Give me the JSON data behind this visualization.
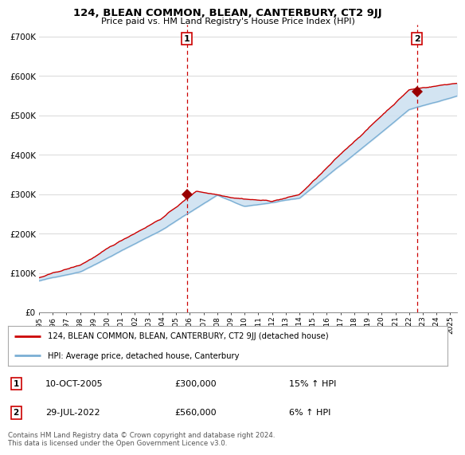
{
  "title": "124, BLEAN COMMON, BLEAN, CANTERBURY, CT2 9JJ",
  "subtitle": "Price paid vs. HM Land Registry's House Price Index (HPI)",
  "ylabel_ticks": [
    "£0",
    "£100K",
    "£200K",
    "£300K",
    "£400K",
    "£500K",
    "£600K",
    "£700K"
  ],
  "ytick_values": [
    0,
    100000,
    200000,
    300000,
    400000,
    500000,
    600000,
    700000
  ],
  "ylim": [
    0,
    730000
  ],
  "xlim_start": 1995.0,
  "xlim_end": 2025.5,
  "hpi_color": "#7bafd4",
  "price_color": "#cc0000",
  "fill_color": "#cce0f0",
  "dashed_line_color": "#cc0000",
  "grid_color": "#d8d8d8",
  "bg_color": "#ffffff",
  "sale1_x": 2005.78,
  "sale1_y": 300000,
  "sale2_x": 2022.58,
  "sale2_y": 560000,
  "marker_color": "#990000",
  "legend_property_label": "124, BLEAN COMMON, BLEAN, CANTERBURY, CT2 9JJ (detached house)",
  "legend_hpi_label": "HPI: Average price, detached house, Canterbury",
  "note1_num": "1",
  "note1_date": "10-OCT-2005",
  "note1_price": "£300,000",
  "note1_pct": "15% ↑ HPI",
  "note2_num": "2",
  "note2_date": "29-JUL-2022",
  "note2_price": "£560,000",
  "note2_pct": "6% ↑ HPI",
  "footer": "Contains HM Land Registry data © Crown copyright and database right 2024.\nThis data is licensed under the Open Government Licence v3.0."
}
